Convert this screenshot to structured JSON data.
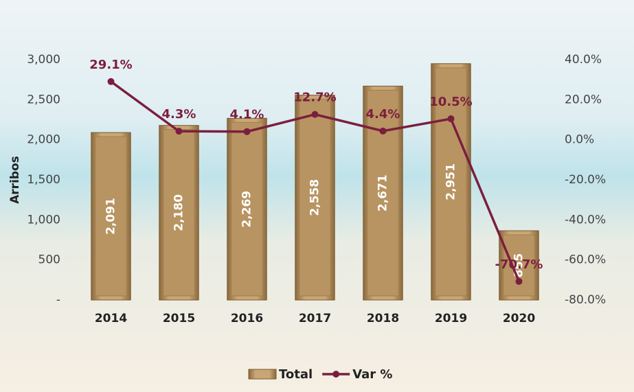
{
  "chart_data": {
    "type": "bar",
    "y_label": "Arribos",
    "categories": [
      "2014",
      "2015",
      "2016",
      "2017",
      "2018",
      "2019",
      "2020"
    ],
    "series": [
      {
        "name": "Total",
        "type": "bar",
        "color": "#b89462",
        "values": [
          2091,
          2180,
          2269,
          2558,
          2671,
          2951,
          865
        ],
        "value_labels": [
          "2,091",
          "2,180",
          "2,269",
          "2,558",
          "2,671",
          "2,951",
          "865"
        ]
      },
      {
        "name": "Var %",
        "type": "line",
        "axis": "y2",
        "color": "#7b1e3e",
        "values": [
          29.1,
          4.3,
          4.1,
          12.7,
          4.4,
          10.5,
          -70.7
        ],
        "value_labels": [
          "29.1%",
          "4.3%",
          "4.1%",
          "12.7%",
          "4.4%",
          "10.5%",
          "-70.7%"
        ]
      }
    ],
    "ylim": [
      0,
      3000
    ],
    "yticks": [
      {
        "value": 0,
        "label": "-"
      },
      500,
      {
        "value": 1000,
        "label": "1,000"
      },
      {
        "value": 1500,
        "label": "1,500"
      },
      {
        "value": 2000,
        "label": "2,000"
      },
      {
        "value": 2500,
        "label": "2,500"
      },
      {
        "value": 3000,
        "label": "3,000"
      }
    ],
    "y2lim": [
      -80,
      40
    ],
    "y2ticks": [
      {
        "value": -80,
        "label": "-80.0%"
      },
      {
        "value": -60,
        "label": "-60.0%"
      },
      {
        "value": -40,
        "label": "-40.0%"
      },
      {
        "value": -20,
        "label": "-20.0%"
      },
      {
        "value": 0,
        "label": "0.0%"
      },
      {
        "value": 20,
        "label": "20.0%"
      },
      {
        "value": 40,
        "label": "40.0%"
      }
    ],
    "grid": false,
    "legend": "bottom"
  }
}
